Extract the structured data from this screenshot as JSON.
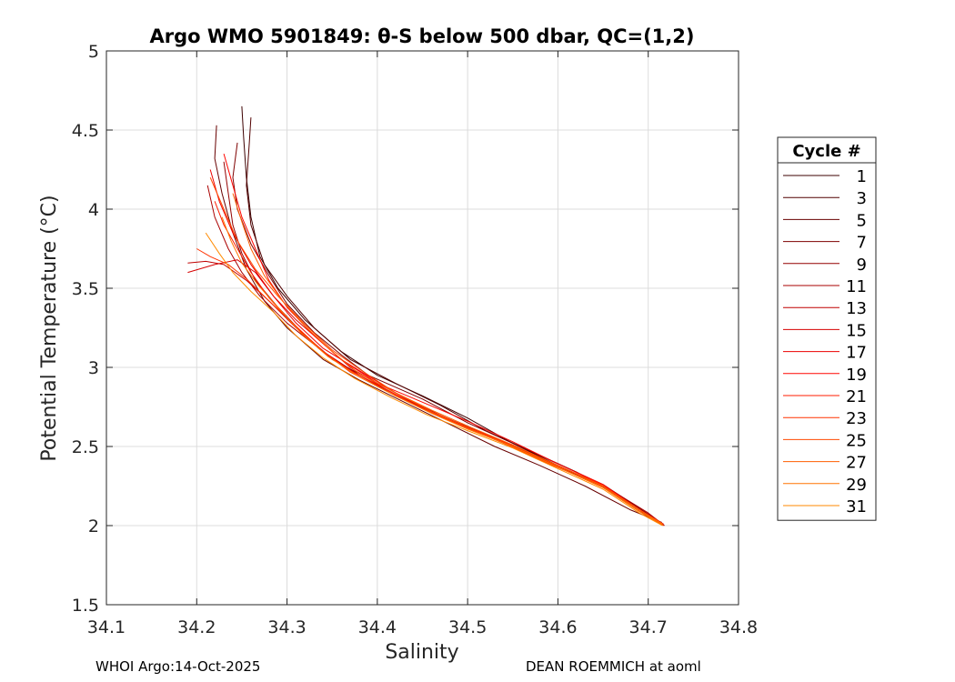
{
  "chart_data": {
    "type": "line",
    "title": "Argo WMO 5901849: θ-S below 500 dbar,  QC=(1,2)",
    "xlabel": "Salinity",
    "ylabel": "Potential Temperature (°C)",
    "xlim": [
      34.1,
      34.8
    ],
    "ylim": [
      1.5,
      5
    ],
    "xticks": [
      34.1,
      34.2,
      34.3,
      34.4,
      34.5,
      34.6,
      34.7,
      34.8
    ],
    "xtick_labels": [
      "34.1",
      "34.2",
      "34.3",
      "34.4",
      "34.5",
      "34.6",
      "34.7",
      "34.8"
    ],
    "yticks": [
      1.5,
      2,
      2.5,
      3,
      3.5,
      4,
      4.5,
      5
    ],
    "ytick_labels": [
      "1.5",
      "2",
      "2.5",
      "3",
      "3.5",
      "4",
      "4.5",
      "5"
    ],
    "grid": true,
    "legend": {
      "title": "Cycle #",
      "position": "right",
      "entries": [
        {
          "label": "1",
          "color": "#3c0000"
        },
        {
          "label": "3",
          "color": "#520000"
        },
        {
          "label": "5",
          "color": "#680000"
        },
        {
          "label": "7",
          "color": "#7e0000"
        },
        {
          "label": "9",
          "color": "#940000"
        },
        {
          "label": "11",
          "color": "#aa0000"
        },
        {
          "label": "13",
          "color": "#c00000"
        },
        {
          "label": "15",
          "color": "#d60000"
        },
        {
          "label": "17",
          "color": "#ec0000"
        },
        {
          "label": "19",
          "color": "#ff0600"
        },
        {
          "label": "21",
          "color": "#ff1c00"
        },
        {
          "label": "23",
          "color": "#ff3200"
        },
        {
          "label": "25",
          "color": "#ff4800"
        },
        {
          "label": "27",
          "color": "#ff5e00"
        },
        {
          "label": "29",
          "color": "#ff7400"
        },
        {
          "label": "31",
          "color": "#ff8a00"
        }
      ]
    },
    "series": [
      {
        "name": "Cycle 1",
        "color": "#3c0000",
        "s": [
          34.25,
          34.252,
          34.255,
          34.26,
          34.27,
          34.29,
          34.32,
          34.36,
          34.4,
          34.45,
          34.5,
          34.55,
          34.6,
          34.65,
          34.69,
          34.715
        ],
        "t": [
          4.65,
          4.45,
          4.2,
          3.95,
          3.7,
          3.5,
          3.3,
          3.1,
          2.95,
          2.82,
          2.68,
          2.52,
          2.38,
          2.25,
          2.1,
          2.01
        ]
      },
      {
        "name": "Cycle 3",
        "color": "#520000",
        "s": [
          34.26,
          34.258,
          34.255,
          34.26,
          34.275,
          34.3,
          34.33,
          34.37,
          34.42,
          34.47,
          34.52,
          34.57,
          34.62,
          34.66,
          34.695,
          34.717
        ],
        "t": [
          4.58,
          4.4,
          4.15,
          3.9,
          3.65,
          3.45,
          3.25,
          3.05,
          2.9,
          2.76,
          2.6,
          2.47,
          2.34,
          2.22,
          2.08,
          2.0
        ]
      },
      {
        "name": "Cycle 5",
        "color": "#680000",
        "s": [
          34.222,
          34.22,
          34.228,
          34.24,
          34.255,
          34.275,
          34.3,
          34.34,
          34.38,
          34.43,
          34.48,
          34.53,
          34.58,
          34.63,
          34.68,
          34.715
        ],
        "t": [
          4.53,
          4.32,
          4.1,
          3.85,
          3.62,
          3.42,
          3.25,
          3.05,
          2.92,
          2.78,
          2.64,
          2.5,
          2.38,
          2.25,
          2.1,
          2.02
        ]
      },
      {
        "name": "Cycle 7",
        "color": "#7e0000",
        "s": [
          34.245,
          34.24,
          34.245,
          34.26,
          34.28,
          34.3,
          34.33,
          34.36,
          34.39,
          34.45,
          34.5,
          34.55,
          34.6,
          34.65,
          34.69,
          34.714
        ],
        "t": [
          4.42,
          4.2,
          4.0,
          3.78,
          3.58,
          3.4,
          3.22,
          3.08,
          2.95,
          2.8,
          2.65,
          2.52,
          2.39,
          2.26,
          2.11,
          2.02
        ]
      },
      {
        "name": "Cycle 9",
        "color": "#940000",
        "s": [
          34.23,
          34.235,
          34.24,
          34.25,
          34.265,
          34.29,
          34.32,
          34.35,
          34.4,
          34.44,
          34.49,
          34.54,
          34.6,
          34.65,
          34.69,
          34.716
        ],
        "t": [
          4.3,
          4.1,
          3.9,
          3.72,
          3.55,
          3.38,
          3.2,
          3.05,
          2.9,
          2.78,
          2.64,
          2.52,
          2.38,
          2.25,
          2.1,
          2.01
        ]
      },
      {
        "name": "Cycle 11",
        "color": "#aa0000",
        "s": [
          34.212,
          34.22,
          34.235,
          34.25,
          34.27,
          34.3,
          34.34,
          34.38,
          34.42,
          34.46,
          34.51,
          34.56,
          34.61,
          34.66,
          34.7,
          34.718
        ],
        "t": [
          4.15,
          3.95,
          3.75,
          3.6,
          3.45,
          3.28,
          3.1,
          2.95,
          2.83,
          2.72,
          2.6,
          2.48,
          2.35,
          2.22,
          2.08,
          2.0
        ]
      },
      {
        "name": "Cycle 13",
        "color": "#c00000",
        "s": [
          34.19,
          34.21,
          34.23,
          34.255,
          34.28,
          34.31,
          34.345,
          34.38,
          34.42,
          34.46,
          34.5,
          34.55,
          34.6,
          34.65,
          34.69,
          34.714
        ],
        "t": [
          3.66,
          3.67,
          3.65,
          3.55,
          3.42,
          3.25,
          3.08,
          2.95,
          2.82,
          2.72,
          2.62,
          2.5,
          2.38,
          2.25,
          2.1,
          2.02
        ]
      },
      {
        "name": "Cycle 15",
        "color": "#d60000",
        "s": [
          34.19,
          34.22,
          34.245,
          34.265,
          34.285,
          34.31,
          34.34,
          34.37,
          34.41,
          34.45,
          34.5,
          34.55,
          34.6,
          34.65,
          34.69,
          34.716
        ],
        "t": [
          3.6,
          3.65,
          3.68,
          3.6,
          3.45,
          3.3,
          3.15,
          3.0,
          2.86,
          2.74,
          2.62,
          2.5,
          2.37,
          2.24,
          2.09,
          2.01
        ]
      },
      {
        "name": "Cycle 17",
        "color": "#ec0000",
        "s": [
          34.215,
          34.225,
          34.24,
          34.26,
          34.285,
          34.31,
          34.34,
          34.38,
          34.42,
          34.46,
          34.5,
          34.55,
          34.6,
          34.65,
          34.69,
          34.717
        ],
        "t": [
          4.25,
          4.05,
          3.85,
          3.65,
          3.45,
          3.28,
          3.12,
          2.98,
          2.84,
          2.72,
          2.62,
          2.51,
          2.38,
          2.25,
          2.1,
          2.01
        ]
      },
      {
        "name": "Cycle 19",
        "color": "#ff0600",
        "s": [
          34.23,
          34.24,
          34.25,
          34.265,
          34.28,
          34.3,
          34.33,
          34.36,
          34.4,
          34.45,
          34.5,
          34.55,
          34.6,
          34.65,
          34.69,
          34.715
        ],
        "t": [
          4.35,
          4.15,
          3.95,
          3.75,
          3.55,
          3.38,
          3.2,
          3.05,
          2.9,
          2.78,
          2.66,
          2.53,
          2.39,
          2.26,
          2.1,
          2.01
        ]
      },
      {
        "name": "Cycle 21",
        "color": "#ff1c00",
        "s": [
          34.22,
          34.23,
          34.245,
          34.26,
          34.28,
          34.305,
          34.335,
          34.37,
          34.41,
          34.45,
          34.49,
          34.54,
          34.59,
          34.645,
          34.688,
          34.714
        ],
        "t": [
          4.05,
          3.9,
          3.75,
          3.6,
          3.44,
          3.28,
          3.12,
          2.98,
          2.86,
          2.74,
          2.64,
          2.53,
          2.4,
          2.27,
          2.11,
          2.02
        ]
      },
      {
        "name": "Cycle 23",
        "color": "#ff3200",
        "s": [
          34.2,
          34.215,
          34.235,
          34.255,
          34.28,
          34.31,
          34.34,
          34.37,
          34.41,
          34.45,
          34.49,
          34.54,
          34.59,
          34.645,
          34.69,
          34.716
        ],
        "t": [
          3.75,
          3.7,
          3.65,
          3.56,
          3.42,
          3.26,
          3.1,
          2.97,
          2.85,
          2.74,
          2.64,
          2.52,
          2.39,
          2.26,
          2.1,
          2.01
        ]
      },
      {
        "name": "Cycle 25",
        "color": "#ff4800",
        "s": [
          34.215,
          34.23,
          34.245,
          34.265,
          34.29,
          34.32,
          34.35,
          34.385,
          34.42,
          34.46,
          34.5,
          34.55,
          34.6,
          34.65,
          34.69,
          34.717
        ],
        "t": [
          4.2,
          4.0,
          3.8,
          3.62,
          3.45,
          3.27,
          3.11,
          2.97,
          2.84,
          2.72,
          2.62,
          2.5,
          2.37,
          2.24,
          2.09,
          2.0
        ]
      },
      {
        "name": "Cycle 27",
        "color": "#ff5e00",
        "s": [
          34.24,
          34.25,
          34.26,
          34.275,
          34.295,
          34.32,
          34.35,
          34.38,
          34.42,
          34.46,
          34.5,
          34.55,
          34.6,
          34.65,
          34.69,
          34.716
        ],
        "t": [
          4.1,
          3.92,
          3.75,
          3.58,
          3.42,
          3.26,
          3.1,
          2.96,
          2.84,
          2.73,
          2.63,
          2.51,
          2.38,
          2.25,
          2.1,
          2.01
        ]
      },
      {
        "name": "Cycle 29",
        "color": "#ff7400",
        "s": [
          34.228,
          34.238,
          34.25,
          34.268,
          34.29,
          34.315,
          34.345,
          34.38,
          34.42,
          34.46,
          34.5,
          34.55,
          34.6,
          34.65,
          34.69,
          34.716
        ],
        "t": [
          3.95,
          3.8,
          3.66,
          3.52,
          3.38,
          3.22,
          3.07,
          2.94,
          2.82,
          2.71,
          2.61,
          2.5,
          2.37,
          2.24,
          2.09,
          2.01
        ]
      },
      {
        "name": "Cycle 31",
        "color": "#ff8a00",
        "s": [
          34.21,
          34.225,
          34.24,
          34.26,
          34.285,
          34.31,
          34.34,
          34.375,
          34.415,
          34.455,
          34.5,
          34.55,
          34.6,
          34.65,
          34.69,
          34.716
        ],
        "t": [
          3.85,
          3.72,
          3.6,
          3.48,
          3.35,
          3.2,
          3.06,
          2.93,
          2.81,
          2.7,
          2.6,
          2.49,
          2.36,
          2.23,
          2.08,
          2.0
        ]
      }
    ]
  },
  "footer": {
    "left": "WHOI Argo:14-Oct-2025",
    "right": "DEAN ROEMMICH at aoml"
  }
}
